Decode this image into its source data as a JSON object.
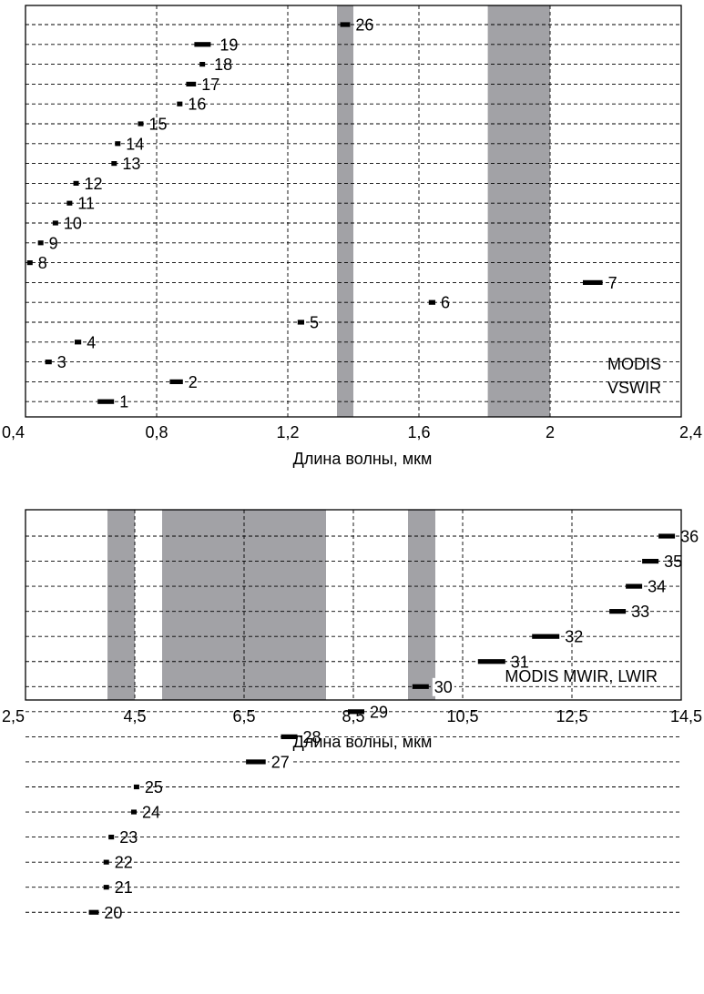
{
  "chart_data": [
    {
      "type": "bar",
      "variant": "horizontal-range",
      "annotation_lines": [
        "MODIS",
        "VSWIR"
      ],
      "xlabel": "Длина волны, мкм",
      "ylabel": "",
      "xlim": [
        0.4,
        2.4
      ],
      "x_ticks": [
        0.4,
        0.8,
        1.2,
        1.6,
        2.0,
        2.4
      ],
      "x_tick_labels": [
        "0,4",
        "0,8",
        "1,2",
        "1,6",
        "2",
        "2,4"
      ],
      "grid": true,
      "absorption_bands": [
        {
          "from": 1.35,
          "to": 1.4
        },
        {
          "from": 1.81,
          "to": 2.0
        }
      ],
      "channels": [
        {
          "label": "1",
          "row": 1,
          "from": 0.62,
          "to": 0.67
        },
        {
          "label": "2",
          "row": 2,
          "from": 0.84,
          "to": 0.88
        },
        {
          "label": "3",
          "row": 3,
          "from": 0.46,
          "to": 0.48
        },
        {
          "label": "4",
          "row": 4,
          "from": 0.55,
          "to": 0.57
        },
        {
          "label": "5",
          "row": 5,
          "from": 1.23,
          "to": 1.25
        },
        {
          "label": "6",
          "row": 6,
          "from": 1.63,
          "to": 1.65
        },
        {
          "label": "7",
          "row": 7,
          "from": 2.1,
          "to": 2.16
        },
        {
          "label": "8",
          "row": 8,
          "from": 0.405,
          "to": 0.42
        },
        {
          "label": "9",
          "row": 9,
          "from": 0.438,
          "to": 0.448
        },
        {
          "label": "10",
          "row": 10,
          "from": 0.483,
          "to": 0.493
        },
        {
          "label": "11",
          "row": 11,
          "from": 0.526,
          "to": 0.536
        },
        {
          "label": "12",
          "row": 12,
          "from": 0.546,
          "to": 0.556
        },
        {
          "label": "13",
          "row": 13,
          "from": 0.662,
          "to": 0.672
        },
        {
          "label": "14",
          "row": 14,
          "from": 0.673,
          "to": 0.683
        },
        {
          "label": "15",
          "row": 15,
          "from": 0.743,
          "to": 0.753
        },
        {
          "label": "16",
          "row": 16,
          "from": 0.862,
          "to": 0.877
        },
        {
          "label": "17",
          "row": 17,
          "from": 0.89,
          "to": 0.92
        },
        {
          "label": "18",
          "row": 18,
          "from": 0.931,
          "to": 0.941
        },
        {
          "label": "19",
          "row": 19,
          "from": 0.915,
          "to": 0.965
        },
        {
          "label": "26",
          "row": 20,
          "from": 1.36,
          "to": 1.39
        }
      ]
    },
    {
      "type": "bar",
      "variant": "horizontal-range",
      "annotation_lines": [
        "MODIS MWIR, LWIR"
      ],
      "xlabel": "Длина волны, мкм",
      "ylabel": "",
      "xlim": [
        2.5,
        14.5
      ],
      "x_ticks": [
        2.5,
        4.5,
        6.5,
        8.5,
        10.5,
        12.5,
        14.5
      ],
      "x_tick_labels": [
        "2,5",
        "4,5",
        "6,5",
        "8,5",
        "10,5",
        "12,5",
        "14,5"
      ],
      "grid": true,
      "absorption_bands": [
        {
          "from": 4.0,
          "to": 4.5
        },
        {
          "from": 5.0,
          "to": 8.0
        },
        {
          "from": 9.5,
          "to": 10.0
        }
      ],
      "channels": [
        {
          "label": "20",
          "row": 1,
          "from": 3.66,
          "to": 3.84
        },
        {
          "label": "21",
          "row": 2,
          "from": 3.929,
          "to": 3.989
        },
        {
          "label": "22",
          "row": 3,
          "from": 3.929,
          "to": 3.989
        },
        {
          "label": "23",
          "row": 4,
          "from": 4.02,
          "to": 4.08
        },
        {
          "label": "24",
          "row": 5,
          "from": 4.433,
          "to": 4.498
        },
        {
          "label": "25",
          "row": 6,
          "from": 4.482,
          "to": 4.549
        },
        {
          "label": "27",
          "row": 7,
          "from": 6.535,
          "to": 6.895
        },
        {
          "label": "28",
          "row": 8,
          "from": 7.175,
          "to": 7.475
        },
        {
          "label": "29",
          "row": 9,
          "from": 8.4,
          "to": 8.7
        },
        {
          "label": "30",
          "row": 10,
          "from": 9.58,
          "to": 9.88
        },
        {
          "label": "31",
          "row": 11,
          "from": 10.78,
          "to": 11.28
        },
        {
          "label": "32",
          "row": 12,
          "from": 11.77,
          "to": 12.27
        },
        {
          "label": "33",
          "row": 13,
          "from": 13.185,
          "to": 13.485
        },
        {
          "label": "34",
          "row": 14,
          "from": 13.485,
          "to": 13.785
        },
        {
          "label": "35",
          "row": 15,
          "from": 13.785,
          "to": 14.085
        },
        {
          "label": "36",
          "row": 16,
          "from": 14.085,
          "to": 14.385
        }
      ]
    }
  ]
}
